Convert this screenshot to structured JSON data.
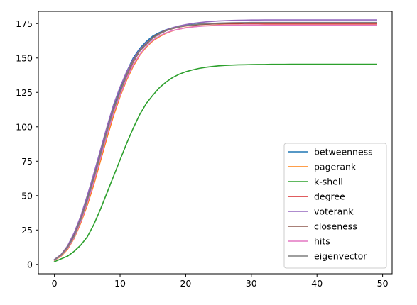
{
  "chart_data": {
    "type": "line",
    "title": "",
    "xlabel": "",
    "ylabel": "",
    "xlim": [
      -2.45,
      51.45
    ],
    "ylim": [
      -6.8,
      183.9
    ],
    "xticks": [
      0,
      10,
      20,
      30,
      40,
      50
    ],
    "yticks": [
      0,
      25,
      50,
      75,
      100,
      125,
      150,
      175
    ],
    "grid": false,
    "legend_position": "lower right",
    "x": [
      0,
      1,
      2,
      3,
      4,
      5,
      6,
      7,
      8,
      9,
      10,
      11,
      12,
      13,
      14,
      15,
      16,
      17,
      18,
      19,
      20,
      21,
      22,
      23,
      24,
      25,
      26,
      27,
      28,
      29,
      30,
      31,
      32,
      33,
      34,
      35,
      36,
      37,
      38,
      39,
      40,
      41,
      42,
      43,
      44,
      45,
      46,
      47,
      48,
      49
    ],
    "series": [
      {
        "name": "betweenness",
        "color": "#1f77b4",
        "values": [
          3.5,
          7,
          13,
          22,
          34,
          48,
          64,
          81,
          98,
          115,
          128,
          140,
          150,
          157,
          162,
          166,
          168.5,
          170.5,
          172,
          173,
          173.8,
          174.3,
          174.7,
          175,
          175.2,
          175.3,
          175.4,
          175.5,
          175.5,
          175.6,
          175.6,
          175.6,
          175.7,
          175.7,
          175.7,
          175.7,
          175.7,
          175.7,
          175.7,
          175.7,
          175.7,
          175.7,
          175.7,
          175.7,
          175.7,
          175.7,
          175.7,
          175.7,
          175.7,
          175.7
        ]
      },
      {
        "name": "pagerank",
        "color": "#ff7f0e",
        "values": [
          3,
          6,
          11,
          19,
          30,
          43,
          58,
          75,
          92,
          108,
          122,
          134,
          144,
          152,
          158,
          162.5,
          165.5,
          168,
          169.8,
          171,
          172,
          172.6,
          173.1,
          173.4,
          173.6,
          173.8,
          173.9,
          174,
          174,
          174.1,
          174.1,
          174.1,
          174.2,
          174.2,
          174.2,
          174.2,
          174.2,
          174.2,
          174.2,
          174.2,
          174.2,
          174.2,
          174.2,
          174.2,
          174.2,
          174.2,
          174.2,
          174.2,
          174.2,
          174.2
        ]
      },
      {
        "name": "k-shell",
        "color": "#2ca02c",
        "values": [
          2,
          4,
          6,
          9.5,
          14,
          20,
          29,
          40,
          52,
          64,
          76,
          88,
          99,
          109,
          117,
          123,
          128.5,
          132.5,
          135.8,
          138.2,
          140,
          141.3,
          142.4,
          143.2,
          143.8,
          144.3,
          144.6,
          144.8,
          145,
          145.1,
          145.2,
          145.3,
          145.3,
          145.4,
          145.4,
          145.4,
          145.5,
          145.5,
          145.5,
          145.5,
          145.5,
          145.5,
          145.5,
          145.5,
          145.5,
          145.5,
          145.5,
          145.5,
          145.5,
          145.5
        ]
      },
      {
        "name": "degree",
        "color": "#d62728",
        "values": [
          3.2,
          6.5,
          12,
          20,
          32,
          46,
          62,
          79,
          96,
          112,
          125,
          137,
          147,
          155,
          160,
          164.5,
          167.5,
          169.8,
          171.3,
          172.5,
          173.3,
          173.8,
          174.2,
          174.5,
          174.7,
          174.8,
          174.9,
          175,
          175,
          175.1,
          175.1,
          175.1,
          175.1,
          175.1,
          175.1,
          175.1,
          175.1,
          175.1,
          175.1,
          175.1,
          175.1,
          175.1,
          175.1,
          175.1,
          175.1,
          175.1,
          175.1,
          175.1,
          175.1,
          175.1
        ]
      },
      {
        "name": "voterank",
        "color": "#9467bd",
        "values": [
          3.6,
          7.2,
          13.5,
          23,
          35,
          50,
          66,
          83,
          100,
          116,
          129,
          140,
          149,
          156,
          161,
          165,
          168,
          170.3,
          172,
          173.3,
          174.3,
          175.1,
          175.7,
          176.2,
          176.6,
          176.9,
          177.1,
          177.3,
          177.4,
          177.5,
          177.6,
          177.6,
          177.7,
          177.7,
          177.7,
          177.7,
          177.7,
          177.7,
          177.7,
          177.7,
          177.7,
          177.7,
          177.7,
          177.7,
          177.7,
          177.7,
          177.7,
          177.7,
          177.7,
          177.7
        ]
      },
      {
        "name": "closeness",
        "color": "#8c564b",
        "values": [
          3.3,
          6.8,
          12.5,
          21,
          33,
          47,
          63,
          80,
          97,
          113,
          126,
          138,
          148,
          155.5,
          160.5,
          165,
          168,
          170,
          171.5,
          172.6,
          173.4,
          173.9,
          174.3,
          174.6,
          174.8,
          175,
          175.1,
          175.2,
          175.3,
          175.3,
          175.4,
          175.4,
          175.4,
          175.4,
          175.4,
          175.4,
          175.4,
          175.4,
          175.4,
          175.4,
          175.4,
          175.4,
          175.4,
          175.4,
          175.4,
          175.4,
          175.4,
          175.4,
          175.4,
          175.4
        ]
      },
      {
        "name": "hits",
        "color": "#e377c2",
        "values": [
          3.1,
          6.3,
          11.5,
          19.5,
          31,
          44.5,
          60,
          77,
          94,
          110,
          123,
          135,
          145,
          152.5,
          158.5,
          163,
          166,
          168.3,
          169.9,
          171,
          171.9,
          172.5,
          173,
          173.3,
          173.5,
          173.7,
          173.8,
          173.9,
          173.9,
          174,
          174,
          174,
          174,
          174,
          174,
          174,
          174,
          174,
          174,
          174,
          174,
          174,
          174,
          174,
          174,
          174,
          174,
          174,
          174,
          174
        ]
      },
      {
        "name": "eigenvector",
        "color": "#7f7f7f",
        "values": [
          3.3,
          6.6,
          12.2,
          20.5,
          32.5,
          46.5,
          62.5,
          79.5,
          96.5,
          112.5,
          125.5,
          137.5,
          147.5,
          155,
          160,
          164.5,
          167.5,
          169.8,
          171.4,
          172.6,
          173.5,
          174.1,
          174.6,
          174.9,
          175.2,
          175.3,
          175.5,
          175.6,
          175.7,
          175.7,
          175.8,
          175.8,
          175.8,
          175.8,
          175.8,
          175.8,
          175.8,
          175.8,
          175.8,
          175.8,
          175.8,
          175.8,
          175.8,
          175.8,
          175.8,
          175.8,
          175.8,
          175.8,
          175.8,
          175.8
        ]
      }
    ]
  }
}
